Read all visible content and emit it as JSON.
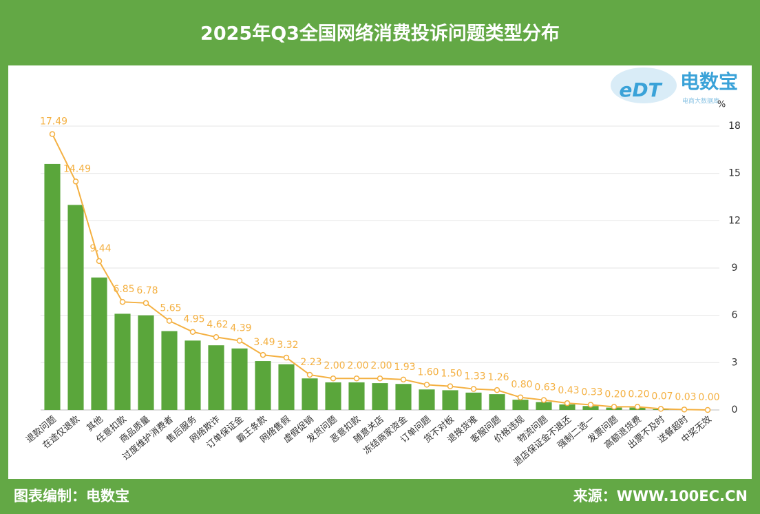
{
  "chart_data": {
    "type": "bar",
    "title": "2025年Q3全国网络消费投诉问题类型分布",
    "y_unit": "%",
    "categories": [
      "退款问题",
      "在途仅退款",
      "其他",
      "任意扣款",
      "商品质量",
      "过度维护消费者",
      "售后服务",
      "网络欺诈",
      "订单保证金",
      "霸王条款",
      "网络售假",
      "虚假促销",
      "发货问题",
      "恶意扣款",
      "随意关店",
      "冻结商家资金",
      "订单问题",
      "货不对板",
      "退换货难",
      "客服问题",
      "价格违规",
      "物流问题",
      "退店保证金不退还",
      "强制二选一",
      "发票问题",
      "高额退货费",
      "出票不及时",
      "送餐超时",
      "中奖无效"
    ],
    "series": [
      {
        "type": "bar",
        "color": "#5aa63b",
        "values": [
          15.6,
          13.0,
          8.4,
          6.1,
          6.0,
          5.0,
          4.4,
          4.1,
          3.9,
          3.1,
          2.9,
          2.0,
          1.75,
          1.75,
          1.7,
          1.65,
          1.3,
          1.25,
          1.1,
          1.0,
          0.65,
          0.5,
          0.35,
          0.25,
          0.15,
          0.15,
          0.05,
          0.02,
          0
        ]
      },
      {
        "type": "line",
        "color": "#f4b041",
        "values": [
          17.49,
          14.49,
          9.44,
          6.85,
          6.78,
          5.65,
          4.95,
          4.62,
          4.39,
          3.49,
          3.32,
          2.23,
          2.0,
          2.0,
          2.0,
          1.93,
          1.6,
          1.5,
          1.33,
          1.26,
          0.8,
          0.63,
          0.43,
          0.33,
          0.2,
          0.2,
          0.07,
          0.03,
          0
        ],
        "value_labels": [
          "17.49",
          "14.49",
          "9.44",
          "6.85",
          "6.78",
          "5.65",
          "4.95",
          "4.62",
          "4.39",
          "3.49",
          "3.32",
          "2.23",
          "2.00",
          "2.00",
          "2.00",
          "1.93",
          "1.60",
          "1.50",
          "1.33",
          "1.26",
          "0.80",
          "0.63",
          "0.43",
          "0.33",
          "0.20",
          "0.20",
          "0.07",
          "0.03",
          "0.00"
        ]
      }
    ],
    "ylim": [
      0,
      18
    ],
    "yticks": [
      0,
      3,
      6,
      9,
      12,
      15,
      18
    ],
    "grid": true,
    "y_axis_position": "right"
  },
  "logo": {
    "mark": "eDT",
    "brand": "电数宝",
    "tagline": "电商大数据库"
  },
  "footer": {
    "left": "图表编制：电数宝",
    "right": "来源：WWW.100EC.CN"
  }
}
